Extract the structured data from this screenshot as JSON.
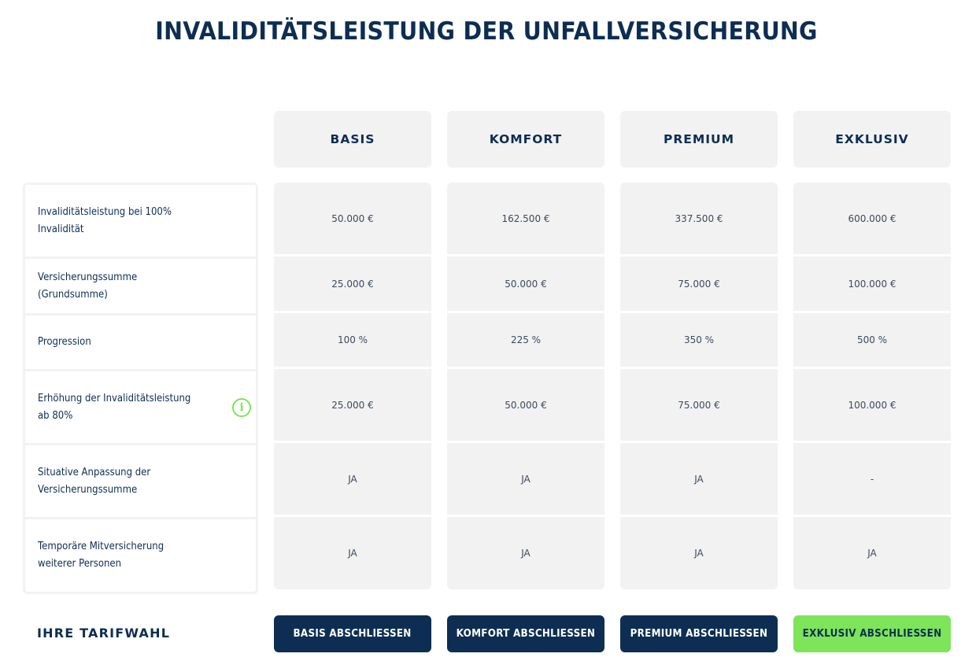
{
  "page": {
    "title": "INVALIDITÄTSLEISTUNG DER UNFALLVERSICHERUNG",
    "footer_label": "IHRE TARIFWAHL"
  },
  "colors": {
    "navy": "#0d2e52",
    "cell_bg": "#f2f2f2",
    "accent_green": "#7ee45a"
  },
  "rows": [
    {
      "label": "Invaliditätsleistung bei 100% Invalidität",
      "has_info": false
    },
    {
      "label": "Versicherungssumme (Grundsumme)",
      "has_info": false
    },
    {
      "label": "Progression",
      "has_info": false
    },
    {
      "label": "Erhöhung der Invaliditätsleistung ab 80%",
      "has_info": true,
      "info_icon": "info-icon"
    },
    {
      "label": "Situative Anpassung der Versicherungssumme",
      "has_info": false
    },
    {
      "label": "Temporäre Mitversicherung weiterer Personen",
      "has_info": false
    }
  ],
  "plans": [
    {
      "name": "BASIS",
      "values": [
        "50.000 €",
        "25.000 €",
        "100 %",
        "25.000 €",
        "JA",
        "JA"
      ],
      "button": "BASIS ABSCHLIESSEN"
    },
    {
      "name": "KOMFORT",
      "values": [
        "162.500 €",
        "50.000 €",
        "225 %",
        "50.000 €",
        "JA",
        "JA"
      ],
      "button": "KOMFORT ABSCHLIESSEN"
    },
    {
      "name": "PREMIUM",
      "values": [
        "337.500 €",
        "75.000 €",
        "350 %",
        "75.000 €",
        "JA",
        "JA"
      ],
      "button": "PREMIUM ABSCHLIESSEN"
    },
    {
      "name": "EXKLUSIV",
      "values": [
        "600.000 €",
        "100.000 €",
        "500 %",
        "100.000 €",
        "-",
        "JA"
      ],
      "button": "EXKLUSIV ABSCHLIESSEN",
      "highlight": true
    }
  ]
}
